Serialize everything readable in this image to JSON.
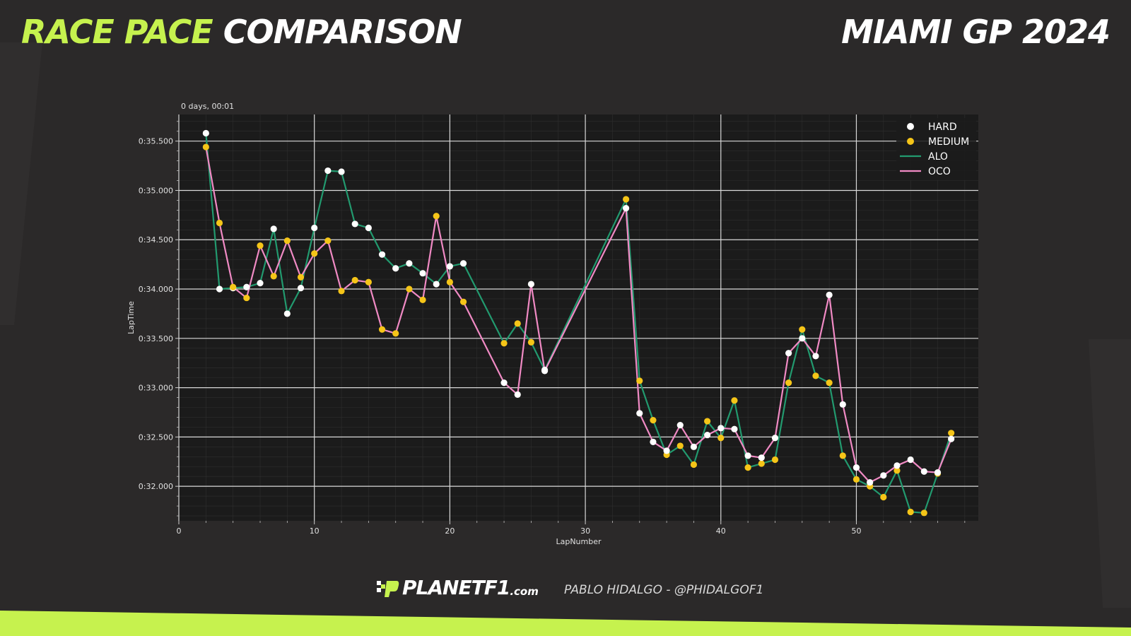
{
  "header": {
    "title_accent": "RACE PACE",
    "title_rest": "COMPARISON",
    "event": "MIAMI GP 2024"
  },
  "footer": {
    "logo_main": "PLANETF1",
    "logo_domain": ".com",
    "credit": "PABLO HIDALGO - @PHIDALGOF1"
  },
  "colors": {
    "accent": "#c6f24e",
    "background": "#2b2929",
    "plot_background": "#1b1b1b",
    "hard": "#ffffff",
    "medium": "#f5c518",
    "alo": "#229a6f",
    "oco": "#f08ac4"
  },
  "chart_data": {
    "type": "line",
    "xlabel": "LapNumber",
    "ylabel": "LapTime",
    "offset_label": "0 days, 00:01",
    "xlim": [
      0,
      59
    ],
    "ylim": [
      31.65,
      35.77
    ],
    "x_ticks": [
      0,
      10,
      20,
      30,
      40,
      50
    ],
    "y_ticks": [
      {
        "value": 35.5,
        "label": "0:35.500"
      },
      {
        "value": 35.0,
        "label": "0:35.000"
      },
      {
        "value": 34.5,
        "label": "0:34.500"
      },
      {
        "value": 34.0,
        "label": "0:34.000"
      },
      {
        "value": 33.5,
        "label": "0:33.500"
      },
      {
        "value": 33.0,
        "label": "0:33.000"
      },
      {
        "value": 32.5,
        "label": "0:32.500"
      },
      {
        "value": 32.0,
        "label": "0:32.000"
      }
    ],
    "grid": true,
    "legend": {
      "position": "top-right",
      "entries": [
        {
          "label": "HARD",
          "kind": "marker",
          "color": "#ffffff"
        },
        {
          "label": "MEDIUM",
          "kind": "marker",
          "color": "#f5c518"
        },
        {
          "label": "ALO",
          "kind": "line",
          "color": "#229a6f"
        },
        {
          "label": "OCO",
          "kind": "line",
          "color": "#f08ac4"
        }
      ]
    },
    "series": [
      {
        "name": "ALO",
        "color": "#229a6f",
        "points": [
          {
            "lap": 2,
            "time": 35.58,
            "compound": "HARD"
          },
          {
            "lap": 3,
            "time": 34.0,
            "compound": "HARD"
          },
          {
            "lap": 4,
            "time": 34.01,
            "compound": "HARD"
          },
          {
            "lap": 5,
            "time": 34.02,
            "compound": "HARD"
          },
          {
            "lap": 6,
            "time": 34.06,
            "compound": "HARD"
          },
          {
            "lap": 7,
            "time": 34.61,
            "compound": "HARD"
          },
          {
            "lap": 8,
            "time": 33.75,
            "compound": "HARD"
          },
          {
            "lap": 9,
            "time": 34.01,
            "compound": "HARD"
          },
          {
            "lap": 10,
            "time": 34.62,
            "compound": "HARD"
          },
          {
            "lap": 11,
            "time": 35.2,
            "compound": "HARD"
          },
          {
            "lap": 12,
            "time": 35.19,
            "compound": "HARD"
          },
          {
            "lap": 13,
            "time": 34.66,
            "compound": "HARD"
          },
          {
            "lap": 14,
            "time": 34.62,
            "compound": "HARD"
          },
          {
            "lap": 15,
            "time": 34.35,
            "compound": "HARD"
          },
          {
            "lap": 16,
            "time": 34.21,
            "compound": "HARD"
          },
          {
            "lap": 17,
            "time": 34.26,
            "compound": "HARD"
          },
          {
            "lap": 18,
            "time": 34.16,
            "compound": "HARD"
          },
          {
            "lap": 19,
            "time": 34.05,
            "compound": "HARD"
          },
          {
            "lap": 20,
            "time": 34.23,
            "compound": "HARD"
          },
          {
            "lap": 21,
            "time": 34.26,
            "compound": "HARD"
          },
          {
            "lap": 24,
            "time": 33.45,
            "compound": "MEDIUM"
          },
          {
            "lap": 25,
            "time": 33.65,
            "compound": "MEDIUM"
          },
          {
            "lap": 26,
            "time": 33.46,
            "compound": "MEDIUM"
          },
          {
            "lap": 27,
            "time": 33.18,
            "compound": "HARD"
          },
          {
            "lap": 33,
            "time": 34.91,
            "compound": "MEDIUM"
          },
          {
            "lap": 34,
            "time": 33.07,
            "compound": "MEDIUM"
          },
          {
            "lap": 35,
            "time": 32.67,
            "compound": "MEDIUM"
          },
          {
            "lap": 36,
            "time": 32.32,
            "compound": "MEDIUM"
          },
          {
            "lap": 37,
            "time": 32.41,
            "compound": "MEDIUM"
          },
          {
            "lap": 38,
            "time": 32.22,
            "compound": "MEDIUM"
          },
          {
            "lap": 39,
            "time": 32.66,
            "compound": "MEDIUM"
          },
          {
            "lap": 40,
            "time": 32.49,
            "compound": "MEDIUM"
          },
          {
            "lap": 41,
            "time": 32.87,
            "compound": "MEDIUM"
          },
          {
            "lap": 42,
            "time": 32.19,
            "compound": "MEDIUM"
          },
          {
            "lap": 43,
            "time": 32.23,
            "compound": "MEDIUM"
          },
          {
            "lap": 44,
            "time": 32.27,
            "compound": "MEDIUM"
          },
          {
            "lap": 45,
            "time": 33.05,
            "compound": "MEDIUM"
          },
          {
            "lap": 46,
            "time": 33.59,
            "compound": "MEDIUM"
          },
          {
            "lap": 47,
            "time": 33.12,
            "compound": "MEDIUM"
          },
          {
            "lap": 48,
            "time": 33.05,
            "compound": "MEDIUM"
          },
          {
            "lap": 49,
            "time": 32.31,
            "compound": "MEDIUM"
          },
          {
            "lap": 50,
            "time": 32.07,
            "compound": "MEDIUM"
          },
          {
            "lap": 51,
            "time": 32.0,
            "compound": "MEDIUM"
          },
          {
            "lap": 52,
            "time": 31.89,
            "compound": "MEDIUM"
          },
          {
            "lap": 53,
            "time": 32.16,
            "compound": "MEDIUM"
          },
          {
            "lap": 54,
            "time": 31.74,
            "compound": "MEDIUM"
          },
          {
            "lap": 55,
            "time": 31.73,
            "compound": "MEDIUM"
          },
          {
            "lap": 56,
            "time": 32.13,
            "compound": "MEDIUM"
          },
          {
            "lap": 57,
            "time": 32.54,
            "compound": "MEDIUM"
          }
        ]
      },
      {
        "name": "OCO",
        "color": "#f08ac4",
        "points": [
          {
            "lap": 2,
            "time": 35.44,
            "compound": "MEDIUM"
          },
          {
            "lap": 3,
            "time": 34.67,
            "compound": "MEDIUM"
          },
          {
            "lap": 4,
            "time": 34.02,
            "compound": "MEDIUM"
          },
          {
            "lap": 5,
            "time": 33.91,
            "compound": "MEDIUM"
          },
          {
            "lap": 6,
            "time": 34.44,
            "compound": "MEDIUM"
          },
          {
            "lap": 7,
            "time": 34.13,
            "compound": "MEDIUM"
          },
          {
            "lap": 8,
            "time": 34.49,
            "compound": "MEDIUM"
          },
          {
            "lap": 9,
            "time": 34.12,
            "compound": "MEDIUM"
          },
          {
            "lap": 10,
            "time": 34.36,
            "compound": "MEDIUM"
          },
          {
            "lap": 11,
            "time": 34.49,
            "compound": "MEDIUM"
          },
          {
            "lap": 12,
            "time": 33.98,
            "compound": "MEDIUM"
          },
          {
            "lap": 13,
            "time": 34.09,
            "compound": "MEDIUM"
          },
          {
            "lap": 14,
            "time": 34.07,
            "compound": "MEDIUM"
          },
          {
            "lap": 15,
            "time": 33.59,
            "compound": "MEDIUM"
          },
          {
            "lap": 16,
            "time": 33.55,
            "compound": "MEDIUM"
          },
          {
            "lap": 17,
            "time": 34.0,
            "compound": "MEDIUM"
          },
          {
            "lap": 18,
            "time": 33.89,
            "compound": "MEDIUM"
          },
          {
            "lap": 19,
            "time": 34.74,
            "compound": "MEDIUM"
          },
          {
            "lap": 20,
            "time": 34.07,
            "compound": "MEDIUM"
          },
          {
            "lap": 21,
            "time": 33.87,
            "compound": "MEDIUM"
          },
          {
            "lap": 24,
            "time": 33.05,
            "compound": "HARD"
          },
          {
            "lap": 25,
            "time": 32.93,
            "compound": "HARD"
          },
          {
            "lap": 26,
            "time": 34.05,
            "compound": "HARD"
          },
          {
            "lap": 27,
            "time": 33.17,
            "compound": "HARD"
          },
          {
            "lap": 33,
            "time": 34.82,
            "compound": "HARD"
          },
          {
            "lap": 34,
            "time": 32.74,
            "compound": "HARD"
          },
          {
            "lap": 35,
            "time": 32.45,
            "compound": "HARD"
          },
          {
            "lap": 36,
            "time": 32.36,
            "compound": "HARD"
          },
          {
            "lap": 37,
            "time": 32.62,
            "compound": "HARD"
          },
          {
            "lap": 38,
            "time": 32.4,
            "compound": "HARD"
          },
          {
            "lap": 39,
            "time": 32.52,
            "compound": "HARD"
          },
          {
            "lap": 40,
            "time": 32.59,
            "compound": "HARD"
          },
          {
            "lap": 41,
            "time": 32.58,
            "compound": "HARD"
          },
          {
            "lap": 42,
            "time": 32.31,
            "compound": "HARD"
          },
          {
            "lap": 43,
            "time": 32.29,
            "compound": "HARD"
          },
          {
            "lap": 44,
            "time": 32.49,
            "compound": "HARD"
          },
          {
            "lap": 45,
            "time": 33.35,
            "compound": "HARD"
          },
          {
            "lap": 46,
            "time": 33.5,
            "compound": "HARD"
          },
          {
            "lap": 47,
            "time": 33.32,
            "compound": "HARD"
          },
          {
            "lap": 48,
            "time": 33.94,
            "compound": "HARD"
          },
          {
            "lap": 49,
            "time": 32.83,
            "compound": "HARD"
          },
          {
            "lap": 50,
            "time": 32.19,
            "compound": "HARD"
          },
          {
            "lap": 51,
            "time": 32.04,
            "compound": "HARD"
          },
          {
            "lap": 52,
            "time": 32.11,
            "compound": "HARD"
          },
          {
            "lap": 53,
            "time": 32.21,
            "compound": "HARD"
          },
          {
            "lap": 54,
            "time": 32.27,
            "compound": "HARD"
          },
          {
            "lap": 55,
            "time": 32.15,
            "compound": "HARD"
          },
          {
            "lap": 56,
            "time": 32.14,
            "compound": "HARD"
          },
          {
            "lap": 57,
            "time": 32.48,
            "compound": "HARD"
          }
        ]
      }
    ]
  }
}
